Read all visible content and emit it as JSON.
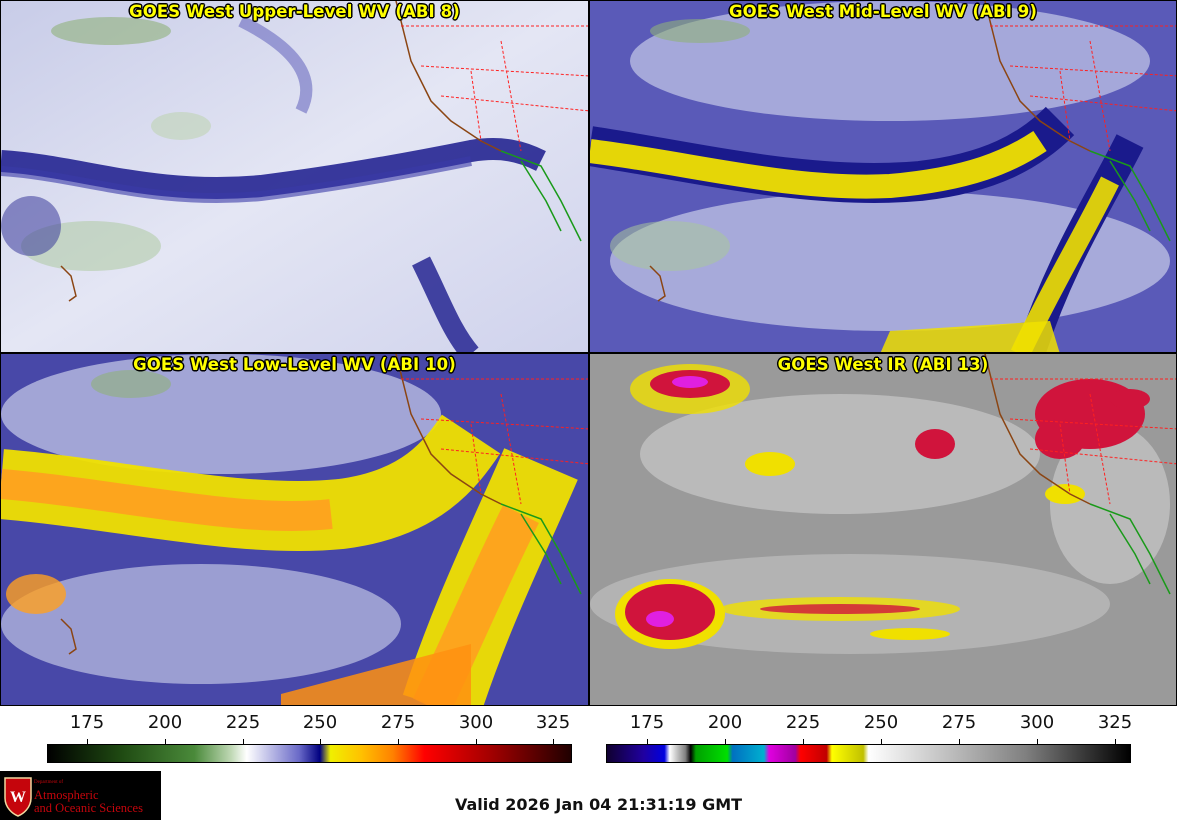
{
  "panels": [
    {
      "title": "GOES West Upper-Level WV (ABI 8)"
    },
    {
      "title": "GOES West Mid-Level WV (ABI 9)"
    },
    {
      "title": "GOES West Low-Level WV (ABI 10)"
    },
    {
      "title": "GOES West IR (ABI 13)"
    }
  ],
  "colorbars": [
    {
      "ticks": [
        "175",
        "200",
        "225",
        "250",
        "275",
        "300",
        "325"
      ]
    },
    {
      "ticks": [
        "175",
        "200",
        "225",
        "250",
        "275",
        "300",
        "325"
      ]
    }
  ],
  "logo": {
    "dept_line1": "Department of",
    "name_line1": "Atmospheric",
    "name_line2": "and Oceanic Sciences"
  },
  "valid_time": "Valid 2026 Jan 04 21:31:19 GMT",
  "colors": {
    "title": "#ffff00",
    "wv_moist": "#e8eaf6",
    "wv_dry": "#1a1a8c",
    "wv_very_dry": "#f0e000",
    "ir_background": "#9a9a9a",
    "ir_cold": "#d0143c",
    "coast_us": "#8b4513",
    "state_lines": "#ff2020",
    "coast_mexico": "#1a9a1a"
  }
}
